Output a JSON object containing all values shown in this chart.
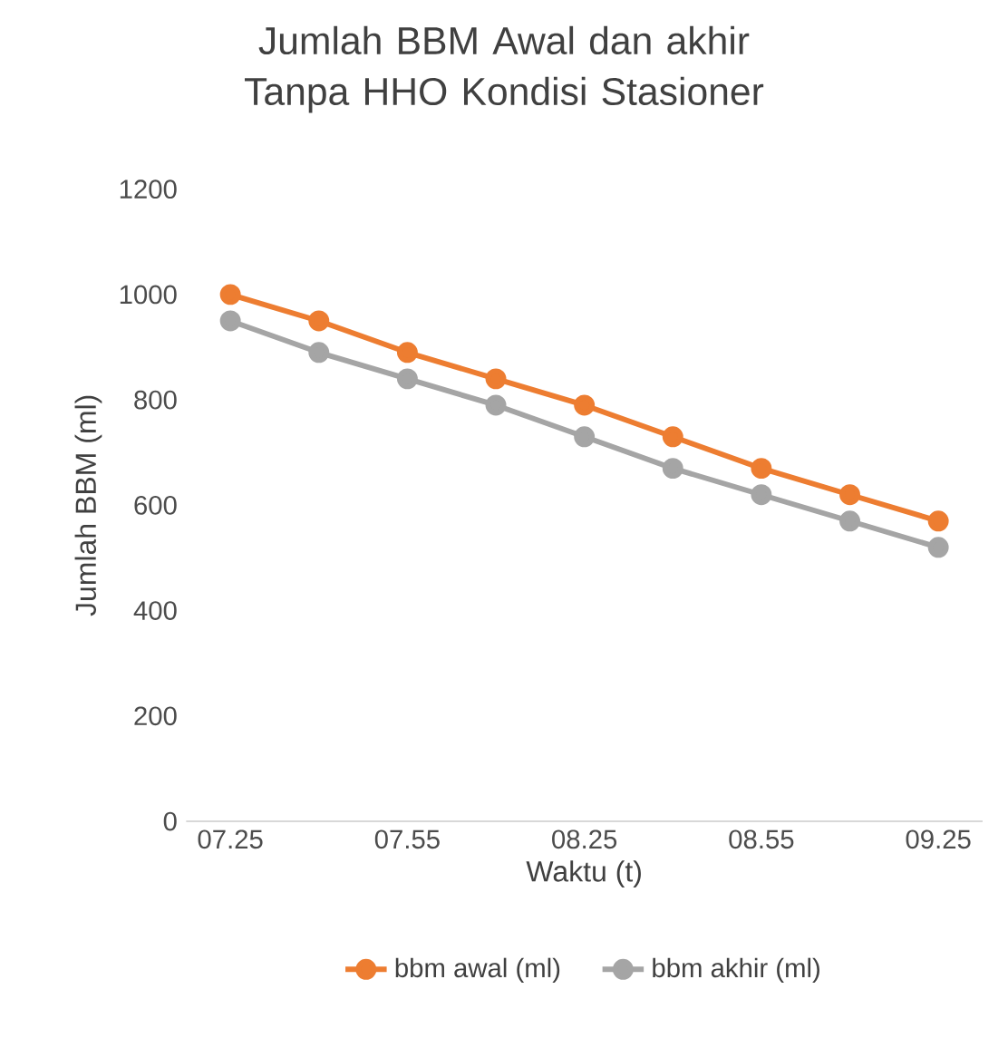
{
  "chart_data": {
    "type": "line",
    "title": "Jumlah BBM Awal dan akhir  Tanpa HHO Kondisi Stasioner",
    "xlabel": "Waktu (t)",
    "ylabel": "Jumlah BBM (ml)",
    "categories": [
      "07.25",
      null,
      "07.55",
      null,
      "08.25",
      null,
      "08.55",
      null,
      "09.25"
    ],
    "series": [
      {
        "name": "bbm awal (ml)",
        "color": "#ed7d31",
        "values": [
          1000,
          950,
          890,
          840,
          790,
          730,
          670,
          620,
          570
        ]
      },
      {
        "name": "bbm akhir (ml)",
        "color": "#a5a5a5",
        "values": [
          950,
          890,
          840,
          790,
          730,
          670,
          620,
          570,
          520
        ]
      }
    ],
    "ylim": [
      0,
      1200
    ],
    "yticks": [
      0,
      200,
      400,
      600,
      800,
      1000,
      1200
    ],
    "legend": "bottom",
    "marker": "circle",
    "line_style": "solid"
  }
}
